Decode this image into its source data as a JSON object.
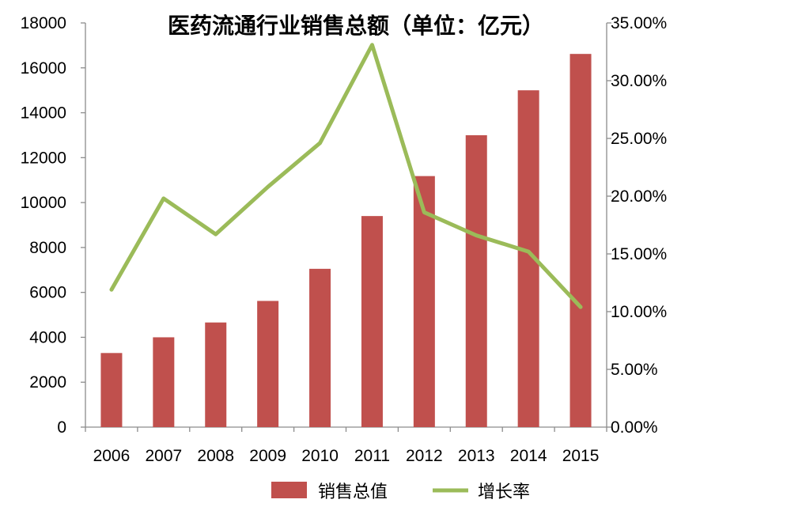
{
  "chart_data": {
    "type": "bar",
    "title": "医药流通行业销售总额（单位：亿元）",
    "categories": [
      "2006",
      "2007",
      "2008",
      "2009",
      "2010",
      "2011",
      "2012",
      "2013",
      "2014",
      "2015"
    ],
    "series": [
      {
        "name": "销售总值",
        "type": "bar",
        "axis": "left",
        "color": "#C0504D",
        "values": [
          3300,
          4000,
          4660,
          5620,
          7050,
          9400,
          11180,
          13000,
          15000,
          16620
        ]
      },
      {
        "name": "增长率",
        "type": "line",
        "axis": "right",
        "color": "#9BBB59",
        "values": [
          11.9,
          19.8,
          16.7,
          20.8,
          24.6,
          33.1,
          18.6,
          16.6,
          15.2,
          10.4
        ]
      }
    ],
    "y_left": {
      "min": 0,
      "max": 18000,
      "ticks": [
        0,
        2000,
        4000,
        6000,
        8000,
        10000,
        12000,
        14000,
        16000,
        18000
      ],
      "tick_labels": [
        "0",
        "2000",
        "4000",
        "6000",
        "8000",
        "10000",
        "12000",
        "14000",
        "16000",
        "18000"
      ]
    },
    "y_right": {
      "min": 0,
      "max": 35,
      "ticks": [
        0,
        5,
        10,
        15,
        20,
        25,
        30,
        35
      ],
      "tick_labels": [
        "0.00%",
        "5.00%",
        "10.00%",
        "15.00%",
        "20.00%",
        "25.00%",
        "30.00%",
        "35.00%"
      ]
    },
    "grid": false,
    "legend": {
      "position": "bottom-center",
      "items": [
        "销售总值",
        "增长率"
      ]
    }
  }
}
